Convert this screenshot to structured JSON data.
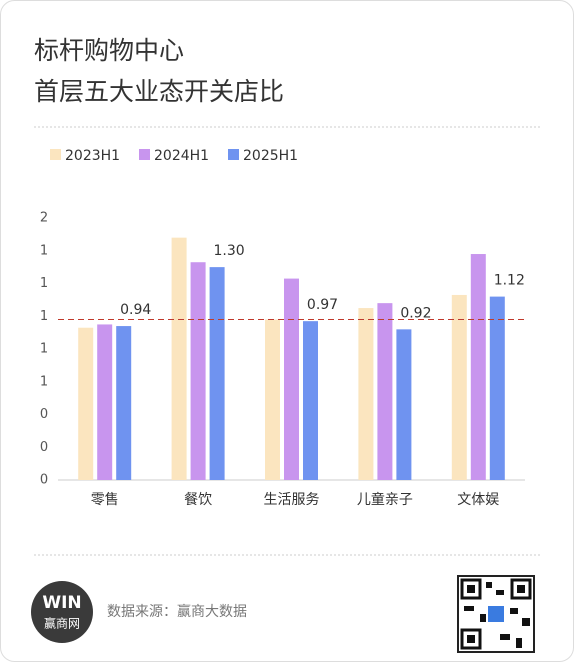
{
  "chart_data": {
    "type": "bar",
    "title_lines": [
      "标杆购物中心",
      "首层五大业态开关店比"
    ],
    "categories": [
      "零售",
      "餐饮",
      "生活服务",
      "儿童亲子",
      "文体娱"
    ],
    "series": [
      {
        "name": "2023H1",
        "color": "#fbe5bf",
        "values": [
          0.93,
          1.48,
          0.98,
          1.05,
          1.13
        ]
      },
      {
        "name": "2024H1",
        "color": "#c895ee",
        "values": [
          0.95,
          1.33,
          1.23,
          1.08,
          1.38
        ]
      },
      {
        "name": "2025H1",
        "color": "#6f93f0",
        "values": [
          0.94,
          1.3,
          0.97,
          0.92,
          1.12
        ],
        "value_labels": [
          "0.94",
          "1.30",
          "0.97",
          "0.92",
          "1.12"
        ]
      }
    ],
    "ylim": [
      0,
      1.6
    ],
    "yticks": [
      {
        "value": 0,
        "label": "0"
      },
      {
        "value": 0.2,
        "label": "0"
      },
      {
        "value": 0.4,
        "label": "0"
      },
      {
        "value": 0.6,
        "label": "1"
      },
      {
        "value": 0.8,
        "label": "1"
      },
      {
        "value": 1.0,
        "label": "1"
      },
      {
        "value": 1.2,
        "label": "1"
      },
      {
        "value": 1.4,
        "label": "1"
      },
      {
        "value": 1.6,
        "label": "2"
      }
    ],
    "reference_line": {
      "value": 0.98,
      "color": "#c0392b"
    },
    "legend": "top-left",
    "grid": false
  },
  "footer": {
    "logo_text": "WIN",
    "logo_name": "赢商网",
    "source": "数据来源：赢商大数据"
  }
}
